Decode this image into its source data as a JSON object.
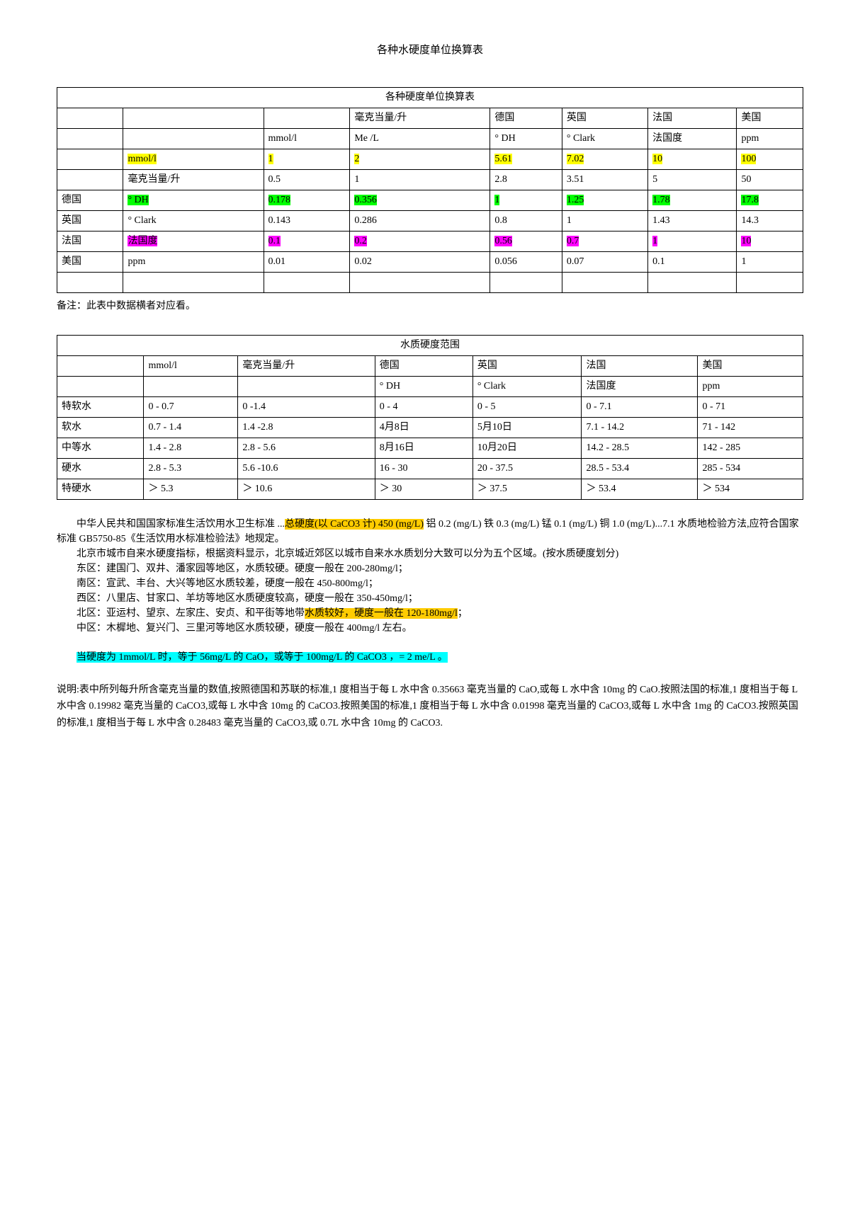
{
  "title": "各种水硬度单位换算表",
  "table1": {
    "title": "各种硬度单位换算表",
    "headerRow1": [
      "",
      "",
      "",
      "毫克当量/升",
      "德国",
      "英国",
      "法国",
      "美国"
    ],
    "headerRow2": [
      "",
      "",
      "mmol/l",
      "Me /L",
      "° DH",
      "° Clark",
      "法国度",
      "ppm"
    ],
    "rows": [
      {
        "cells": [
          "",
          "mmol/l",
          "1",
          "2",
          "5.61",
          "7.02",
          "10",
          "100"
        ],
        "hl": [
          "",
          "yellow",
          "yellow",
          "yellow",
          "yellow",
          "yellow",
          "yellow",
          "yellow"
        ]
      },
      {
        "cells": [
          "",
          "毫克当量/升",
          "0.5",
          "1",
          "2.8",
          "3.51",
          "5",
          "50"
        ]
      },
      {
        "cells": [
          "德国",
          "° DH",
          "0.178",
          "0.356",
          "1",
          "1.25",
          "1.78",
          "17.8"
        ],
        "hl": [
          "",
          "green",
          "green",
          "green",
          "green",
          "green",
          "green",
          "green"
        ]
      },
      {
        "cells": [
          "英国",
          "° Clark",
          "0.143",
          "0.286",
          "0.8",
          "1",
          "1.43",
          "14.3"
        ]
      },
      {
        "cells": [
          "法国",
          "法国度",
          "0.1",
          "0.2",
          "0.56",
          "0.7",
          "1",
          "10"
        ],
        "hl": [
          "",
          "magenta",
          "magenta",
          "magenta",
          "magenta",
          "magenta",
          "magenta",
          "magenta"
        ]
      },
      {
        "cells": [
          "美国",
          "ppm",
          "0.01",
          "0.02",
          "0.056",
          "0.07",
          "0.1",
          "1"
        ]
      },
      {
        "cells": [
          "",
          "",
          "",
          "",
          "",
          "",
          "",
          ""
        ]
      }
    ]
  },
  "note1": "备注：此表中数据横者对应看。",
  "table2": {
    "title": "水质硬度范围",
    "headerRow1": [
      "",
      "mmol/l",
      "毫克当量/升",
      "德国",
      "英国",
      "法国",
      "美国"
    ],
    "headerRow2": [
      "",
      "",
      "",
      "° DH",
      "° Clark",
      "法国度",
      "ppm"
    ],
    "rows": [
      [
        "特软水",
        "0 - 0.7",
        "0 -1.4",
        "0 - 4",
        "0 - 5",
        "0 - 7.1",
        "0 - 71"
      ],
      [
        "软水",
        "0.7 - 1.4",
        "1.4 -2.8",
        "4月8日",
        "5月10日",
        "7.1 - 14.2",
        "71 - 142"
      ],
      [
        "中等水",
        "1.4 - 2.8",
        "2.8 - 5.6",
        "8月16日",
        "10月20日",
        "14.2 - 28.5",
        "142 - 285"
      ],
      [
        "硬水",
        "2.8 - 5.3",
        "5.6 -10.6",
        "16 - 30",
        "20 - 37.5",
        "28.5 - 53.4",
        "285 - 534"
      ],
      [
        "特硬水",
        "＞ 5.3",
        "＞ 10.6",
        "＞ 30",
        "＞ 37.5",
        "＞ 53.4",
        "＞ 534"
      ]
    ]
  },
  "body": {
    "p1a": "中华人民共和国国家标准生活饮用水卫生标准 ...",
    "p1hl": "总硬度(以 CaCO3 计) 450 (mg/L)",
    "p1b": " 铝 0.2 (mg/L) 铁 0.3 (mg/L) 锰 0.1 (mg/L) 铜 1.0 (mg/L)...7.1 水质地检验方法,应符合国家标准 GB5750-85《生活饮用水标准检验法》地规定。",
    "p2": "北京市城市自来水硬度指标，根据资料显示，北京城近郊区以城市自来水水质划分大致可以分为五个区域。(按水质硬度划分)",
    "p3": "东区：建国门、双井、潘家园等地区，水质较硬。硬度一般在 200-280mg/l；",
    "p4": "南区：宣武、丰台、大兴等地区水质较差，硬度一般在 450-800mg/l；",
    "p5": "西区：八里店、甘家口、羊坊等地区水质硬度较高，硬度一般在 350-450mg/l；",
    "p6a": "北区：亚运村、望京、左家庄、安贞、和平街等地带",
    "p6hl": "水质较好，硬度一般在 120-180mg/l",
    "p6b": "；",
    "p7": "中区：木樨地、复兴门、三里河等地区水质较硬，硬度一般在 400mg/l 左右。",
    "p8": "当硬度为 1mmol/L 时，等于 56mg/L 的 CaO，或等于 100mg/L 的 CaCO3 ，= 2 me/L 。",
    "explain": "说明:表中所列每升所含毫克当量的数值,按照德国和苏联的标准,1 度相当于每 L 水中含 0.35663 毫克当量的 CaO,或每 L 水中含 10mg 的 CaO.按照法国的标准,1 度相当于每 L 水中含 0.19982 毫克当量的 CaCO3,或每 L 水中含 10mg 的 CaCO3.按照美国的标准,1 度相当于每 L 水中含 0.01998 毫克当量的 CaCO3,或每 L 水中含 1mg 的 CaCO3.按照英国的标准,1 度相当于每 L 水中含 0.28483 毫克当量的 CaCO3,或 0.7L 水中含 10mg 的 CaCO3."
  }
}
